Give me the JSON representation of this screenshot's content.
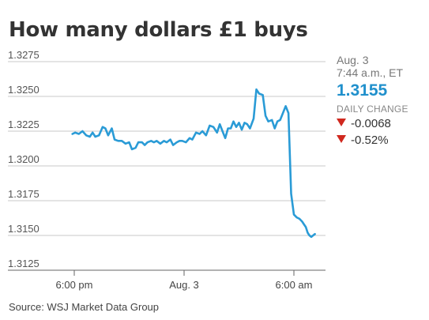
{
  "title": "How many dollars £1 buys",
  "source": "Source: WSJ Market Data Group",
  "info_panel": {
    "date": "Aug. 3",
    "time": "7:44 a.m., ET",
    "price": "1.3155",
    "change_label": "DAILY CHANGE",
    "change_abs": "-0.0068",
    "change_pct": "-0.52%",
    "down_color": "#d0281e",
    "price_color": "#2090cc"
  },
  "chart_data": {
    "type": "line",
    "title": "How many dollars £1 buys",
    "xlabel": "",
    "ylabel": "",
    "ylim": [
      1.3125,
      1.3275
    ],
    "yticks": [
      "1.3275",
      "1.3250",
      "1.3225",
      "1.3200",
      "1.3175",
      "1.3150",
      "1.3125"
    ],
    "ytick_values": [
      1.3275,
      1.325,
      1.3225,
      1.32,
      1.3175,
      1.315,
      1.3125
    ],
    "xlim": [
      -1,
      14.2
    ],
    "xticks": [
      "6:00 pm",
      "Aug. 3",
      "6:00 am"
    ],
    "xtick_values": [
      0,
      6,
      12
    ],
    "x_unit": "hours after 6:00 pm ET on Aug. 2",
    "grid": true,
    "line_color": "#2a9bd6",
    "series": [
      {
        "name": "",
        "x": [
          -0.1,
          0.05,
          0.25,
          0.45,
          0.65,
          0.85,
          1.0,
          1.15,
          1.35,
          1.55,
          1.7,
          1.85,
          2.05,
          2.2,
          2.4,
          2.6,
          2.8,
          3.0,
          3.15,
          3.35,
          3.5,
          3.7,
          3.85,
          4.0,
          4.2,
          4.35,
          4.5,
          4.7,
          4.9,
          5.05,
          5.25,
          5.4,
          5.6,
          5.75,
          5.9,
          6.1,
          6.3,
          6.45,
          6.65,
          6.85,
          7.0,
          7.2,
          7.4,
          7.6,
          7.8,
          7.95,
          8.1,
          8.25,
          8.4,
          8.55,
          8.7,
          8.85,
          9.0,
          9.15,
          9.3,
          9.45,
          9.6,
          9.8,
          9.95,
          10.1,
          10.3,
          10.45,
          10.6,
          10.8,
          10.95,
          11.1,
          11.25,
          11.4,
          11.55,
          11.7,
          11.85,
          12.0,
          12.15,
          12.3,
          12.45,
          12.55,
          12.65,
          12.75,
          12.85,
          12.95,
          13.05,
          13.15
        ],
        "y": [
          1.3223,
          1.3224,
          1.3223,
          1.3225,
          1.3222,
          1.3221,
          1.3224,
          1.3221,
          1.3222,
          1.3228,
          1.3227,
          1.3222,
          1.3227,
          1.3219,
          1.3218,
          1.3218,
          1.3216,
          1.3217,
          1.3212,
          1.3213,
          1.3217,
          1.3217,
          1.3215,
          1.3217,
          1.3218,
          1.3217,
          1.3218,
          1.3216,
          1.3218,
          1.3217,
          1.3219,
          1.3215,
          1.3217,
          1.3218,
          1.3218,
          1.3217,
          1.322,
          1.3219,
          1.3224,
          1.3223,
          1.3225,
          1.3222,
          1.3229,
          1.3228,
          1.3224,
          1.323,
          1.3225,
          1.322,
          1.3227,
          1.3227,
          1.3232,
          1.3228,
          1.3231,
          1.3226,
          1.3231,
          1.323,
          1.3227,
          1.3234,
          1.3255,
          1.3252,
          1.3251,
          1.3236,
          1.3232,
          1.3233,
          1.3227,
          1.3232,
          1.3233,
          1.3238,
          1.3243,
          1.3238,
          1.318,
          1.3165,
          1.3163,
          1.3162,
          1.316,
          1.3158,
          1.3156,
          1.3152,
          1.315,
          1.3149,
          1.315,
          1.3151
        ],
        "points": [
          [
            -0.1,
            1.3223
          ],
          [
            0.05,
            1.3224
          ],
          [
            0.25,
            1.3223
          ],
          [
            0.45,
            1.3225
          ],
          [
            0.65,
            1.3222
          ],
          [
            0.85,
            1.3221
          ],
          [
            1.0,
            1.3224
          ],
          [
            1.15,
            1.3221
          ],
          [
            1.35,
            1.3222
          ],
          [
            1.55,
            1.3228
          ],
          [
            1.7,
            1.3227
          ],
          [
            1.85,
            1.3222
          ],
          [
            2.05,
            1.3227
          ],
          [
            2.2,
            1.3219
          ],
          [
            2.4,
            1.3218
          ],
          [
            2.6,
            1.3218
          ],
          [
            2.8,
            1.3216
          ],
          [
            3.0,
            1.3217
          ],
          [
            3.15,
            1.3212
          ],
          [
            3.35,
            1.3213
          ],
          [
            3.5,
            1.3217
          ],
          [
            3.7,
            1.3217
          ],
          [
            3.85,
            1.3215
          ],
          [
            4.0,
            1.3217
          ],
          [
            4.2,
            1.3218
          ],
          [
            4.35,
            1.3217
          ],
          [
            4.5,
            1.3218
          ],
          [
            4.7,
            1.3216
          ],
          [
            4.9,
            1.3218
          ],
          [
            5.05,
            1.3217
          ],
          [
            5.25,
            1.3219
          ],
          [
            5.4,
            1.3215
          ],
          [
            5.6,
            1.3217
          ],
          [
            5.75,
            1.3218
          ],
          [
            5.9,
            1.3218
          ],
          [
            6.1,
            1.3217
          ],
          [
            6.3,
            1.322
          ],
          [
            6.45,
            1.3219
          ],
          [
            6.65,
            1.3224
          ],
          [
            6.85,
            1.3223
          ],
          [
            7.0,
            1.3225
          ],
          [
            7.2,
            1.3222
          ],
          [
            7.4,
            1.3229
          ],
          [
            7.6,
            1.3228
          ],
          [
            7.8,
            1.3224
          ],
          [
            7.95,
            1.323
          ],
          [
            8.1,
            1.3225
          ],
          [
            8.25,
            1.322
          ],
          [
            8.4,
            1.3227
          ],
          [
            8.55,
            1.3227
          ],
          [
            8.7,
            1.3232
          ],
          [
            8.85,
            1.3228
          ],
          [
            9.0,
            1.3231
          ],
          [
            9.15,
            1.3226
          ],
          [
            9.3,
            1.3231
          ],
          [
            9.45,
            1.323
          ],
          [
            9.6,
            1.3227
          ],
          [
            9.8,
            1.3234
          ],
          [
            9.95,
            1.3255
          ],
          [
            10.1,
            1.3252
          ],
          [
            10.3,
            1.3251
          ],
          [
            10.45,
            1.3236
          ],
          [
            10.6,
            1.3232
          ],
          [
            10.8,
            1.3233
          ],
          [
            10.95,
            1.3227
          ],
          [
            11.1,
            1.3232
          ],
          [
            11.25,
            1.3233
          ],
          [
            11.4,
            1.3238
          ],
          [
            11.55,
            1.3243
          ],
          [
            11.7,
            1.3238
          ],
          [
            11.85,
            1.318
          ],
          [
            12.0,
            1.3165
          ],
          [
            12.15,
            1.3163
          ],
          [
            12.3,
            1.3162
          ],
          [
            12.45,
            1.316
          ],
          [
            12.55,
            1.3158
          ],
          [
            12.65,
            1.3156
          ],
          [
            12.75,
            1.3152
          ],
          [
            12.85,
            1.315
          ],
          [
            12.95,
            1.3149
          ],
          [
            13.05,
            1.315
          ],
          [
            13.15,
            1.3151
          ]
        ]
      }
    ]
  }
}
